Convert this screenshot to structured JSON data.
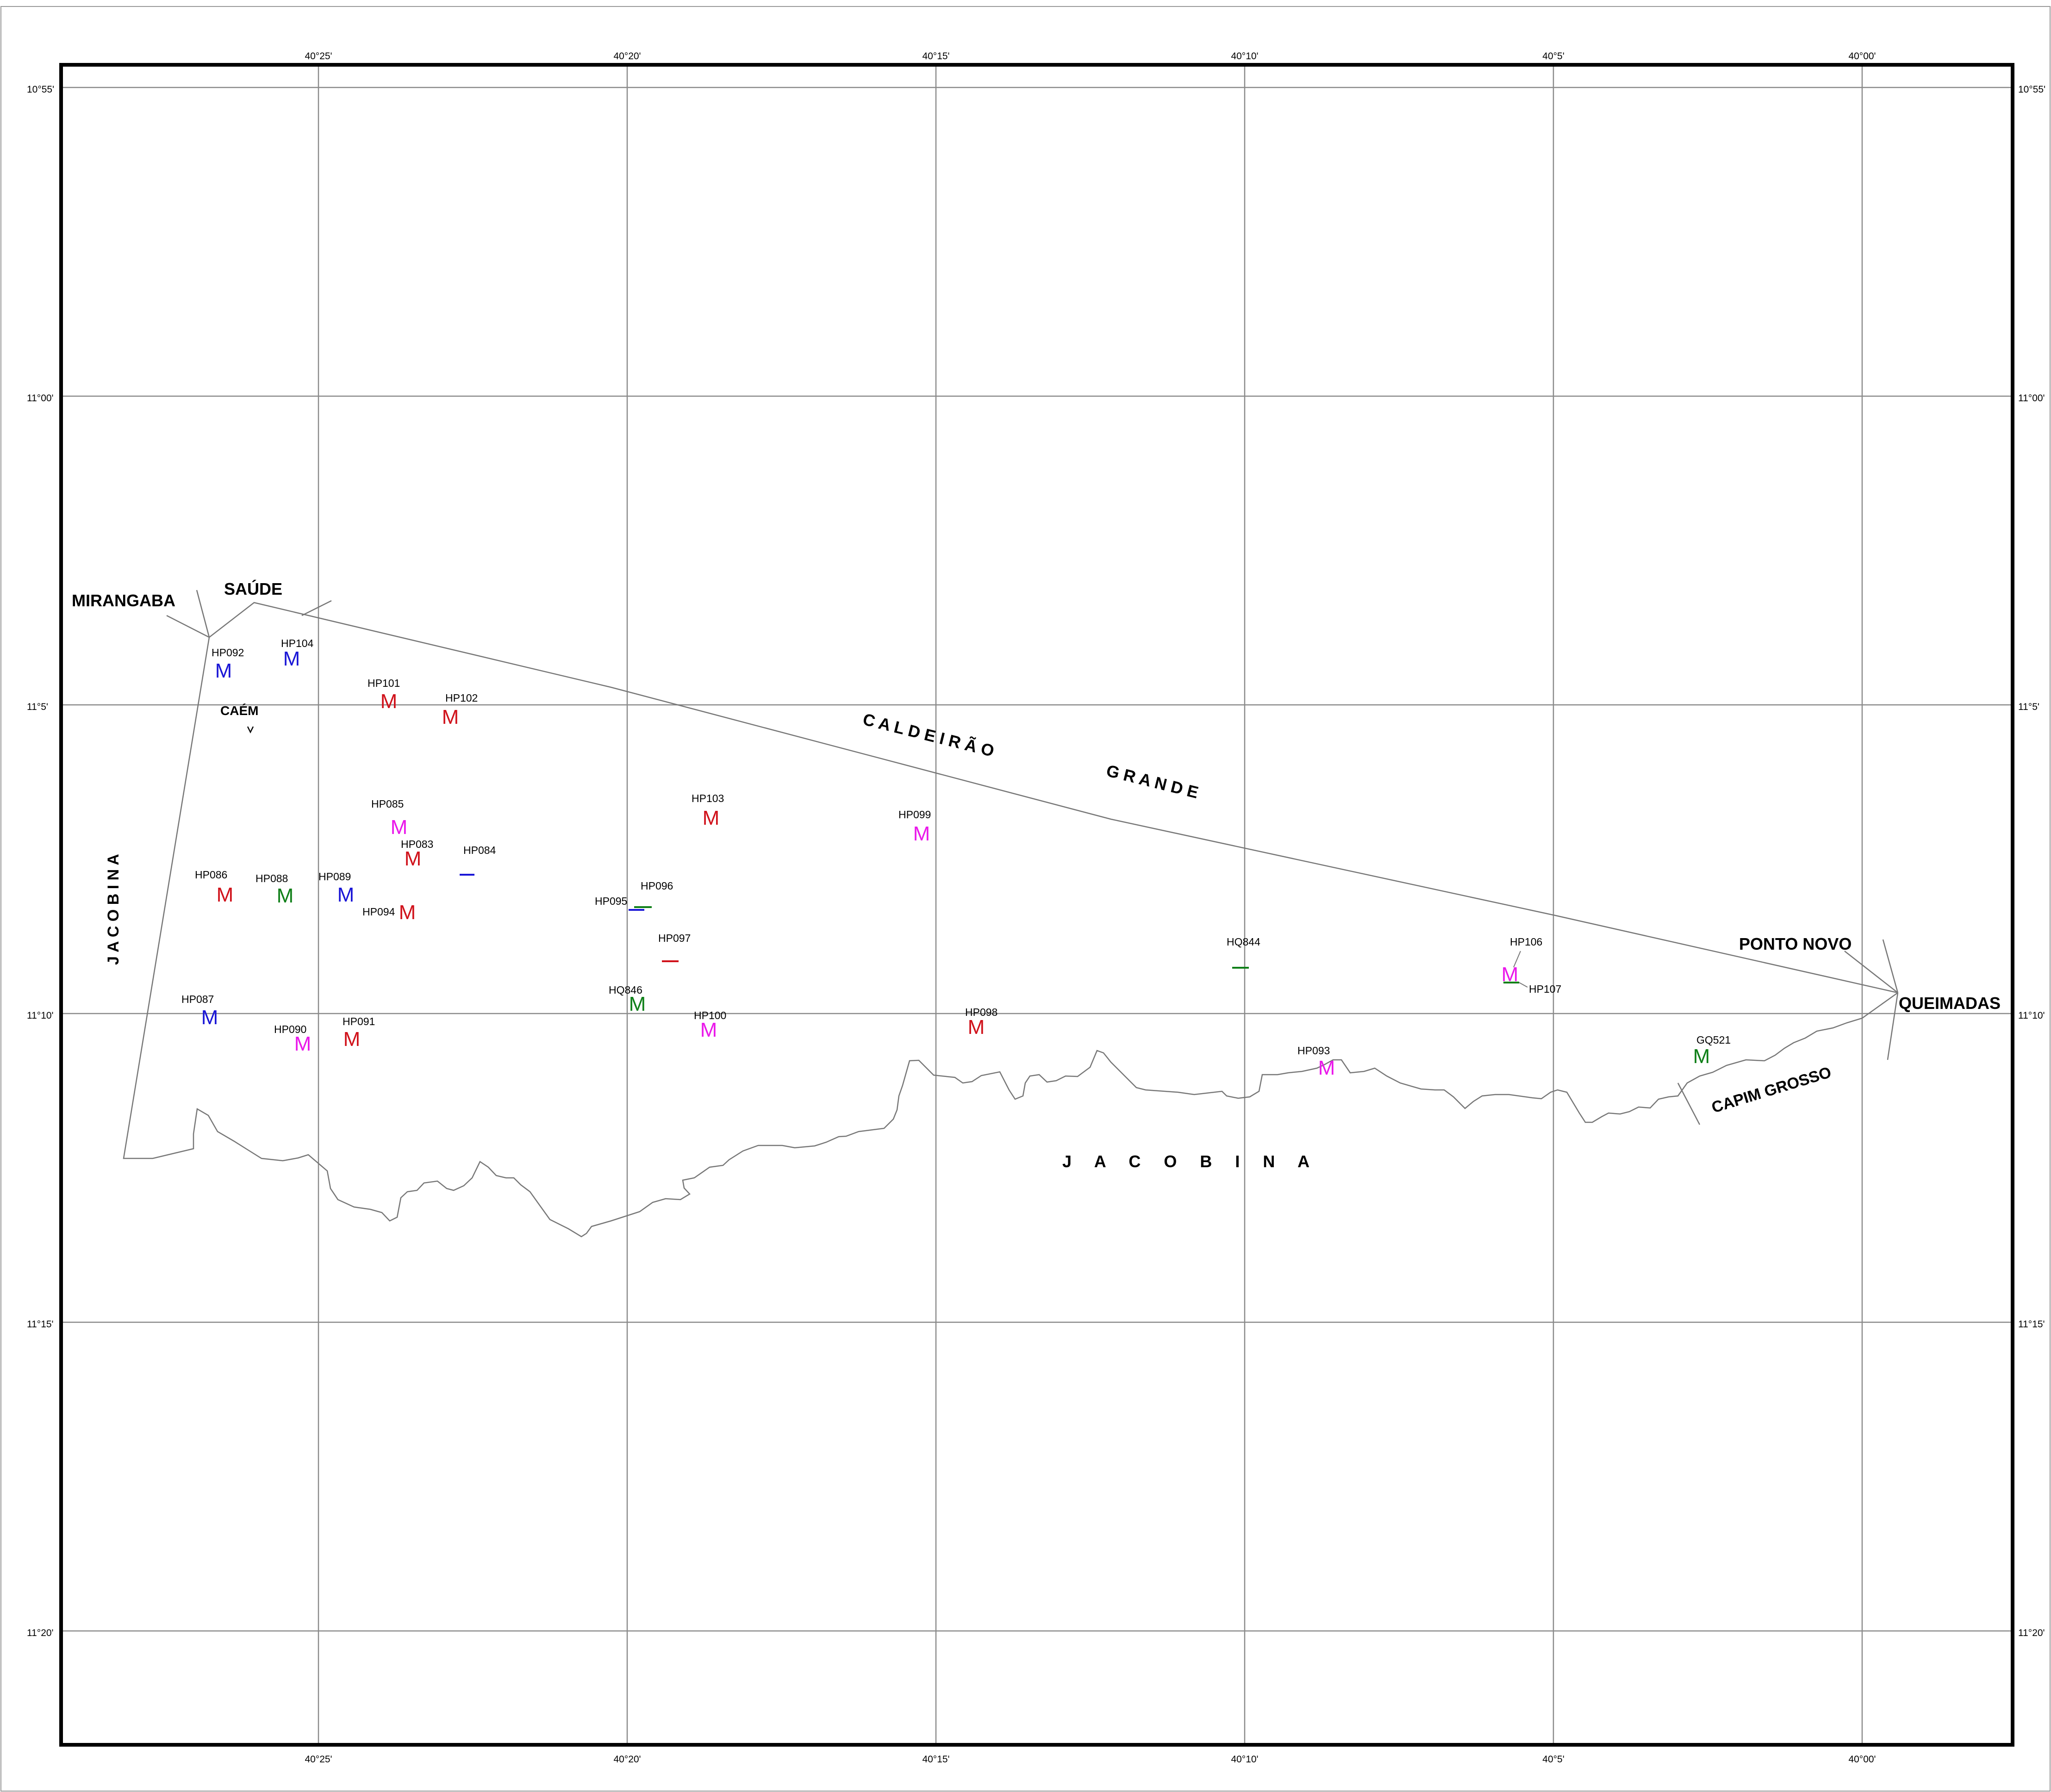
{
  "map": {
    "grid_labels": {
      "top": [
        "40°25'",
        "40°20'",
        "40°15'",
        "40°10'",
        "40°5'",
        "40°00'"
      ],
      "bottom": [
        "40°25'",
        "40°20'",
        "40°15'",
        "40°10'",
        "40°5'",
        "40°00'"
      ],
      "left": [
        "10°55'",
        "11°00'",
        "11°5'",
        "11°10'",
        "11°15'",
        "11°20'"
      ],
      "right": [
        "10°55'",
        "11°00'",
        "11°5'",
        "11°10'",
        "11°15'",
        "11°20'"
      ]
    },
    "place_names": {
      "mirangaba": "MIRANGABA",
      "saude": "SAÚDE",
      "caem": "CAÉM",
      "ponto_novo": "PONTO NOVO",
      "queimadas": "QUEIMADAS",
      "capim_grosso": "CAPIM  GROSSO",
      "caldeirao": "C A L D E I R Ã O",
      "grande": "G R A N D E",
      "jacobina_vertical": "J  A  C  O  B  I  N  A",
      "jacobina_bottom": "J     A     C     O     B     I     N     A"
    },
    "sample_symbol": "M",
    "colors": {
      "red": "#d0121b",
      "blue": "#1a16d6",
      "green": "#0f7f18",
      "magenta": "#ea18ea",
      "line": "#8a8a8a",
      "frame": "#000000"
    },
    "samples": [
      {
        "id": "HP092",
        "symbol": "M",
        "color": "blue"
      },
      {
        "id": "HP104",
        "symbol": "M",
        "color": "blue"
      },
      {
        "id": "HP101",
        "symbol": "M",
        "color": "red"
      },
      {
        "id": "HP102",
        "symbol": "M",
        "color": "red"
      },
      {
        "id": "HP085",
        "symbol": "M",
        "color": "magenta"
      },
      {
        "id": "HP083",
        "symbol": "M",
        "color": "red"
      },
      {
        "id": "HP084",
        "symbol": "dash",
        "color": "blue"
      },
      {
        "id": "HP086",
        "symbol": "M",
        "color": "red"
      },
      {
        "id": "HP088",
        "symbol": "M",
        "color": "green"
      },
      {
        "id": "HP089",
        "symbol": "M",
        "color": "blue"
      },
      {
        "id": "HP094",
        "symbol": "M",
        "color": "red"
      },
      {
        "id": "HP103",
        "symbol": "M",
        "color": "red"
      },
      {
        "id": "HP099",
        "symbol": "M",
        "color": "magenta"
      },
      {
        "id": "HP096",
        "symbol": "dash",
        "color": "green"
      },
      {
        "id": "HP095",
        "symbol": "dash",
        "color": "blue"
      },
      {
        "id": "HP097",
        "symbol": "dash",
        "color": "red"
      },
      {
        "id": "HQ846",
        "symbol": "M",
        "color": "green"
      },
      {
        "id": "HP087",
        "symbol": "M",
        "color": "blue"
      },
      {
        "id": "HP090",
        "symbol": "M",
        "color": "magenta"
      },
      {
        "id": "HP091",
        "symbol": "M",
        "color": "red"
      },
      {
        "id": "HP100",
        "symbol": "M",
        "color": "magenta"
      },
      {
        "id": "HP098",
        "symbol": "M",
        "color": "red"
      },
      {
        "id": "HQ844",
        "symbol": "dash",
        "color": "green"
      },
      {
        "id": "HP106",
        "symbol": "M",
        "color": "magenta"
      },
      {
        "id": "HP107",
        "symbol": "dash",
        "color": "green"
      },
      {
        "id": "HP093",
        "symbol": "M",
        "color": "magenta"
      },
      {
        "id": "GQ521",
        "symbol": "M",
        "color": "green"
      }
    ]
  }
}
